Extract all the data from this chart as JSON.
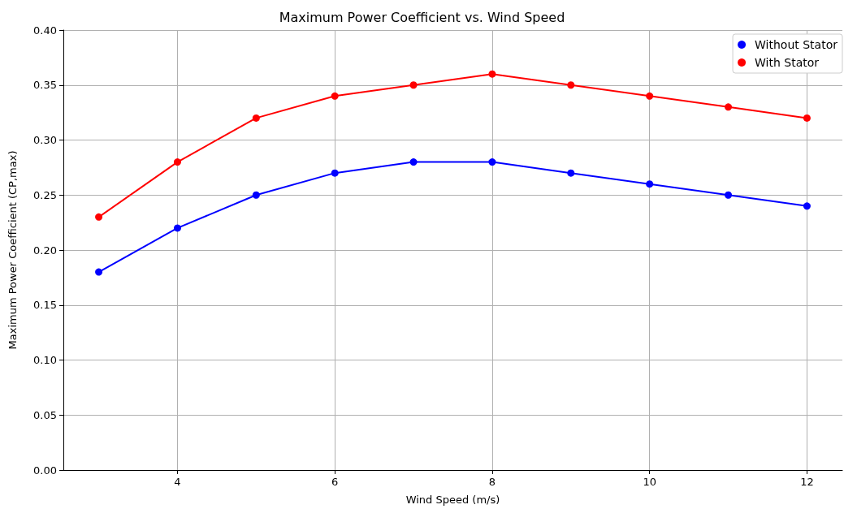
{
  "chart_data": {
    "type": "line",
    "title": "Maximum Power Coefficient vs. Wind Speed",
    "xlabel": "Wind Speed (m/s)",
    "ylabel": "Maximum Power Coefficient (CP,max)",
    "x": [
      3,
      4,
      5,
      6,
      7,
      8,
      9,
      10,
      11,
      12
    ],
    "series": [
      {
        "name": "Without Stator",
        "color": "#0000ff",
        "values": [
          0.18,
          0.22,
          0.25,
          0.27,
          0.28,
          0.28,
          0.27,
          0.26,
          0.25,
          0.24
        ]
      },
      {
        "name": "With Stator",
        "color": "#ff0000",
        "values": [
          0.23,
          0.28,
          0.32,
          0.34,
          0.35,
          0.36,
          0.35,
          0.34,
          0.33,
          0.32
        ]
      }
    ],
    "xlim": [
      2.55,
      12.45
    ],
    "xticks": [
      4,
      6,
      8,
      10,
      12
    ],
    "ylim": [
      0,
      0.4
    ],
    "yticks": [
      {
        "value": 0,
        "label": "0.00"
      },
      {
        "value": 0.05,
        "label": "0.05"
      },
      {
        "value": 0.1,
        "label": "0.10"
      },
      {
        "value": 0.15,
        "label": "0.15"
      },
      {
        "value": 0.2,
        "label": "0.20"
      },
      {
        "value": 0.25,
        "label": "0.25"
      },
      {
        "value": 0.3,
        "label": "0.30"
      },
      {
        "value": 0.35,
        "label": "0.35"
      },
      {
        "value": 0.4,
        "label": "0.40"
      }
    ],
    "grid": true,
    "legend": "top right",
    "marker": "circle",
    "line_style": "solid"
  }
}
